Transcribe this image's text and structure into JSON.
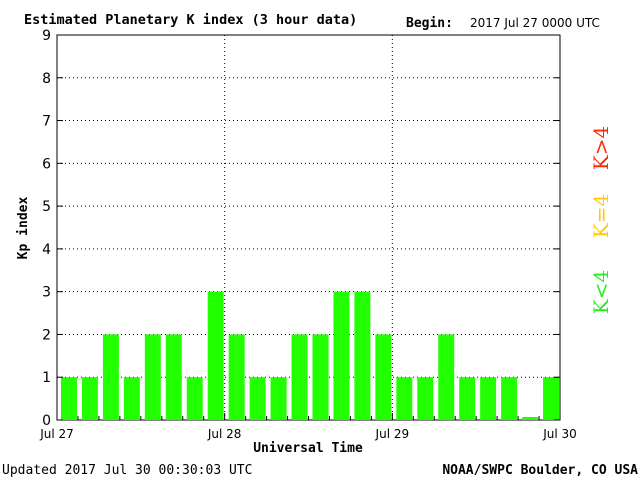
{
  "header": {
    "title": "Estimated Planetary K index (3 hour data)",
    "begin_label": "Begin:",
    "begin_value": "2017 Jul 27 0000 UTC"
  },
  "footer": {
    "updated": "Updated 2017 Jul 30 00:30:03 UTC",
    "source": "NOAA/SWPC Boulder, CO USA"
  },
  "legend": {
    "high": {
      "label": "K>4",
      "color": "#ff2a00"
    },
    "mid": {
      "label": "K=4",
      "color": "#ffcc00"
    },
    "low": {
      "label": "K<4",
      "color": "#22ee22"
    }
  },
  "colors": {
    "bar": "#22ff00",
    "axis": "#000000",
    "grid": "#000000",
    "background": "#ffffff"
  },
  "chart_data": {
    "type": "bar",
    "title": "Estimated Planetary K index (3 hour data)",
    "xlabel": "Universal Time",
    "ylabel": "Kp index",
    "ylim": [
      0,
      9
    ],
    "yticks": [
      "0",
      "1",
      "2",
      "3",
      "4",
      "5",
      "6",
      "7",
      "8",
      "9"
    ],
    "x_date_labels": [
      "Jul 27",
      "Jul 28",
      "Jul 29",
      "Jul 30"
    ],
    "grid": "dotted, major",
    "bars_per_day": 8,
    "values": [
      1,
      1,
      2,
      1,
      2,
      2,
      1,
      3,
      2,
      1,
      1,
      2,
      2,
      3,
      3,
      2,
      1,
      1,
      2,
      1,
      1,
      1,
      0.07,
      1
    ]
  }
}
